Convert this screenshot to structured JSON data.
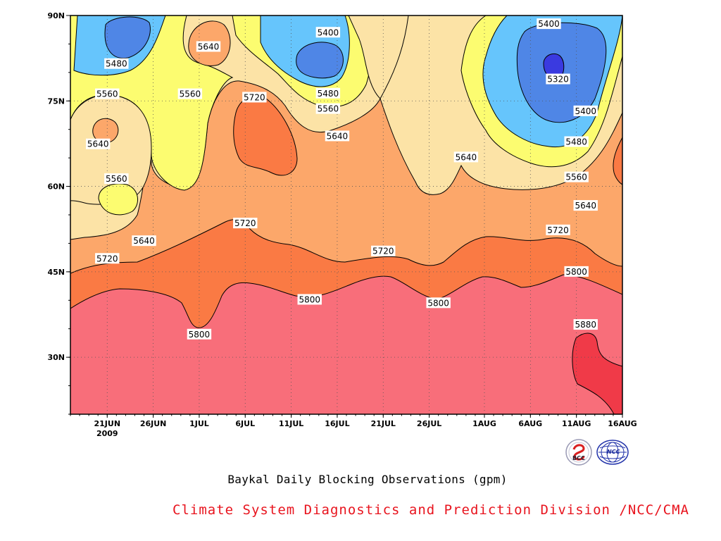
{
  "chart_data": {
    "type": "heatmap",
    "subtype": "filled-contour",
    "title": "Baykal Daily Blocking Observations (gpm)",
    "x": {
      "axis": "date",
      "range": [
        "2009-06-17",
        "2009-08-16"
      ],
      "ticks": [
        {
          "date": "2009-06-21",
          "label": "21JUN",
          "sublabel": "2009"
        },
        {
          "date": "2009-06-26",
          "label": "26JUN"
        },
        {
          "date": "2009-07-01",
          "label": "1JUL"
        },
        {
          "date": "2009-07-06",
          "label": "6JUL"
        },
        {
          "date": "2009-07-11",
          "label": "11JUL"
        },
        {
          "date": "2009-07-16",
          "label": "16JUL"
        },
        {
          "date": "2009-07-21",
          "label": "21JUL"
        },
        {
          "date": "2009-07-26",
          "label": "26JUL"
        },
        {
          "date": "2009-08-01",
          "label": "1AUG"
        },
        {
          "date": "2009-08-06",
          "label": "6AUG"
        },
        {
          "date": "2009-08-11",
          "label": "11AUG"
        },
        {
          "date": "2009-08-16",
          "label": "16AUG"
        }
      ]
    },
    "y": {
      "axis": "latitude",
      "range": [
        20,
        90
      ],
      "ticks": [
        {
          "value": 30,
          "label": "30N"
        },
        {
          "value": 45,
          "label": "45N"
        },
        {
          "value": 60,
          "label": "60N"
        },
        {
          "value": 75,
          "label": "75N"
        },
        {
          "value": 90,
          "label": "90N"
        }
      ]
    },
    "grid": "dotted",
    "levels": [
      5320,
      5400,
      5480,
      5560,
      5640,
      5720,
      5800,
      5880
    ],
    "band_colors": {
      "5320-5400": "#4f86e6",
      "5400-5480": "#66c5fc",
      "5480-5560": "#fcfc70",
      "5560-5640": "#fce3a6",
      "5640-5720": "#fca76a",
      "5720-5800": "#fa7a44",
      "5800-5880": "#f86e7a",
      "above-5880": "#f03a48",
      "below-5320": "#3a3ae0"
    },
    "contour_labels": [
      {
        "date": "2009-06-22",
        "lat": 81.5,
        "text": "5480"
      },
      {
        "date": "2009-06-21",
        "lat": 76.2,
        "text": "5560"
      },
      {
        "date": "2009-06-20",
        "lat": 67.4,
        "text": "5640"
      },
      {
        "date": "2009-06-22",
        "lat": 61.3,
        "text": "5560"
      },
      {
        "date": "2009-06-25",
        "lat": 50.4,
        "text": "5640"
      },
      {
        "date": "2009-06-21",
        "lat": 47.3,
        "text": "5720"
      },
      {
        "date": "2009-07-02",
        "lat": 84.5,
        "text": "5640"
      },
      {
        "date": "2009-06-30",
        "lat": 76.2,
        "text": "5560"
      },
      {
        "date": "2009-07-07",
        "lat": 75.6,
        "text": "5720"
      },
      {
        "date": "2009-07-06",
        "lat": 53.5,
        "text": "5720"
      },
      {
        "date": "2009-07-01",
        "lat": 34.0,
        "text": "5800"
      },
      {
        "date": "2009-07-15",
        "lat": 87.0,
        "text": "5400"
      },
      {
        "date": "2009-07-15",
        "lat": 76.3,
        "text": "5480"
      },
      {
        "date": "2009-07-15",
        "lat": 73.6,
        "text": "5560"
      },
      {
        "date": "2009-07-16",
        "lat": 68.8,
        "text": "5640"
      },
      {
        "date": "2009-07-13",
        "lat": 40.1,
        "text": "5800"
      },
      {
        "date": "2009-07-21",
        "lat": 48.6,
        "text": "5720"
      },
      {
        "date": "2009-07-27",
        "lat": 39.5,
        "text": "5800"
      },
      {
        "date": "2009-07-30",
        "lat": 65.1,
        "text": "5640"
      },
      {
        "date": "2009-08-08",
        "lat": 88.5,
        "text": "5400"
      },
      {
        "date": "2009-08-09",
        "lat": 78.8,
        "text": "5320"
      },
      {
        "date": "2009-08-12",
        "lat": 73.2,
        "text": "5400"
      },
      {
        "date": "2009-08-11",
        "lat": 67.8,
        "text": "5480"
      },
      {
        "date": "2009-08-11",
        "lat": 61.6,
        "text": "5560"
      },
      {
        "date": "2009-08-12",
        "lat": 56.6,
        "text": "5640"
      },
      {
        "date": "2009-08-09",
        "lat": 52.3,
        "text": "5720"
      },
      {
        "date": "2009-08-11",
        "lat": 45.0,
        "text": "5800"
      },
      {
        "date": "2009-08-12",
        "lat": 35.7,
        "text": "5880"
      }
    ]
  },
  "logos": [
    {
      "name": "bcc-logo",
      "text": "BCC"
    },
    {
      "name": "ncc-logo",
      "text": "NCC"
    }
  ],
  "credit": {
    "text": "Climate System Diagnostics and Prediction Division /NCC/CMA",
    "color": "#e8141e"
  }
}
